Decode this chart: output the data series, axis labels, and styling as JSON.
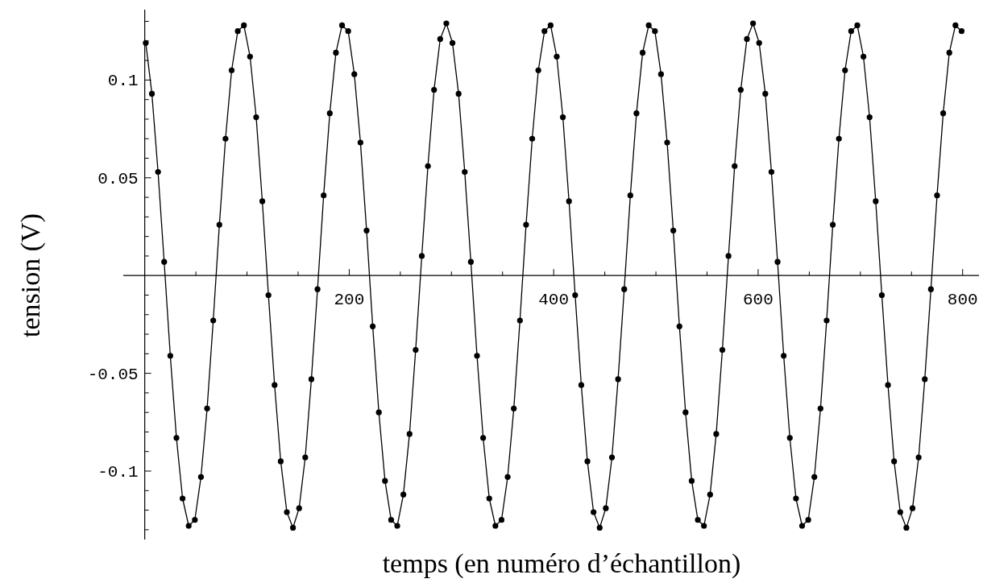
{
  "chart_data": {
    "type": "line",
    "xlabel": "temps (en numéro d’échantillon)",
    "ylabel": "tension (V)",
    "color": "#000000",
    "marker": "circle",
    "line_style": "solid",
    "x": [
      1,
      7,
      13,
      19,
      25,
      31,
      37,
      43,
      49,
      55,
      61,
      67,
      73,
      79,
      85,
      91,
      97,
      103,
      109,
      115,
      121,
      127,
      133,
      139,
      145,
      151,
      157,
      163,
      169,
      175,
      181,
      187,
      193,
      199,
      205,
      211,
      217,
      223,
      229,
      235,
      241,
      247,
      253,
      259,
      265,
      271,
      277,
      283,
      289,
      295,
      301,
      307,
      313,
      319,
      325,
      331,
      337,
      343,
      349,
      355,
      361,
      367,
      373,
      379,
      385,
      391,
      397,
      403,
      409,
      415,
      421,
      427,
      433,
      439,
      445,
      451,
      457,
      463,
      469,
      475,
      481,
      487,
      493,
      499,
      505,
      511,
      517,
      523,
      529,
      535,
      541,
      547,
      553,
      559,
      565,
      571,
      577,
      583,
      589,
      595,
      601,
      607,
      613,
      619,
      625,
      631,
      637,
      643,
      649,
      655,
      661,
      667,
      673,
      679,
      685,
      691,
      697,
      703,
      709,
      715,
      721,
      727,
      733,
      739,
      745,
      751,
      757,
      763,
      769,
      775,
      781,
      787,
      793,
      799
    ],
    "values": [
      0.119,
      0.093,
      0.053,
      0.007,
      -0.041,
      -0.083,
      -0.114,
      -0.128,
      -0.125,
      -0.103,
      -0.068,
      -0.023,
      0.026,
      0.07,
      0.105,
      0.125,
      0.128,
      0.112,
      0.081,
      0.038,
      -0.01,
      -0.056,
      -0.095,
      -0.121,
      -0.129,
      -0.119,
      -0.093,
      -0.053,
      -0.007,
      0.041,
      0.083,
      0.114,
      0.128,
      0.125,
      0.103,
      0.068,
      0.023,
      -0.026,
      -0.07,
      -0.105,
      -0.125,
      -0.128,
      -0.112,
      -0.081,
      -0.038,
      0.01,
      0.056,
      0.095,
      0.121,
      0.129,
      0.119,
      0.093,
      0.053,
      0.007,
      -0.041,
      -0.083,
      -0.114,
      -0.128,
      -0.125,
      -0.103,
      -0.068,
      -0.023,
      0.026,
      0.07,
      0.105,
      0.125,
      0.128,
      0.112,
      0.081,
      0.038,
      -0.01,
      -0.056,
      -0.095,
      -0.121,
      -0.129,
      -0.119,
      -0.093,
      -0.053,
      -0.007,
      0.041,
      0.083,
      0.114,
      0.128,
      0.125,
      0.103,
      0.068,
      0.023,
      -0.026,
      -0.07,
      -0.105,
      -0.125,
      -0.128,
      -0.112,
      -0.081,
      -0.038,
      0.01,
      0.056,
      0.095,
      0.121,
      0.129,
      0.119,
      0.093,
      0.053,
      0.007,
      -0.041,
      -0.083,
      -0.114,
      -0.128,
      -0.125,
      -0.103,
      -0.068,
      -0.023,
      0.026,
      0.07,
      0.105,
      0.125,
      0.128,
      0.112,
      0.081,
      0.038,
      -0.01,
      -0.056,
      -0.095,
      -0.121,
      -0.129,
      -0.119,
      -0.093,
      -0.053,
      -0.007,
      0.041,
      0.083,
      0.114,
      0.128,
      0.125
    ],
    "xlim": [
      -21,
      816
    ],
    "ylim": [
      -0.135,
      0.136
    ],
    "xticks": [
      {
        "value": 50,
        "label": null
      },
      {
        "value": 100,
        "label": null
      },
      {
        "value": 150,
        "label": null
      },
      200,
      {
        "value": 250,
        "label": null
      },
      {
        "value": 300,
        "label": null
      },
      {
        "value": 350,
        "label": null
      },
      400,
      {
        "value": 450,
        "label": null
      },
      {
        "value": 500,
        "label": null
      },
      {
        "value": 550,
        "label": null
      },
      600,
      {
        "value": 650,
        "label": null
      },
      {
        "value": 700,
        "label": null
      },
      {
        "value": 750,
        "label": null
      },
      800
    ],
    "yticks": [
      {
        "value": -0.13,
        "label": null
      },
      {
        "value": -0.12,
        "label": null
      },
      {
        "value": -0.11,
        "label": null
      },
      -0.1,
      {
        "value": -0.09,
        "label": null
      },
      {
        "value": -0.08,
        "label": null
      },
      {
        "value": -0.07,
        "label": null
      },
      {
        "value": -0.06,
        "label": null
      },
      -0.05,
      {
        "value": -0.04,
        "label": null
      },
      {
        "value": -0.03,
        "label": null
      },
      {
        "value": -0.02,
        "label": null
      },
      {
        "value": -0.01,
        "label": null
      },
      {
        "value": 0.01,
        "label": null
      },
      {
        "value": 0.02,
        "label": null
      },
      {
        "value": 0.03,
        "label": null
      },
      {
        "value": 0.04,
        "label": null
      },
      0.05,
      {
        "value": 0.06,
        "label": null
      },
      {
        "value": 0.07,
        "label": null
      },
      {
        "value": 0.08,
        "label": null
      },
      {
        "value": 0.09,
        "label": null
      },
      0.1,
      {
        "value": 0.11,
        "label": null
      },
      {
        "value": 0.12,
        "label": null
      },
      {
        "value": 0.13,
        "label": null
      }
    ]
  }
}
